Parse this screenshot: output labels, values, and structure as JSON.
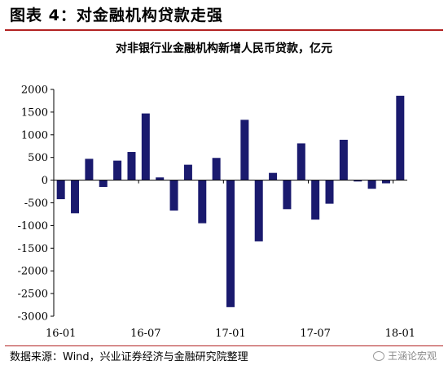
{
  "figure": {
    "label": "图表 4：对金融机构贷款走强",
    "source": "数据来源：Wind，兴业证券经济与金融研究院整理",
    "watermark": "王涵论宏观"
  },
  "colors": {
    "bar": "#1a1a6e",
    "accent_rule": "#b22222"
  },
  "chart_data": {
    "type": "bar",
    "title": "对非银行业金融机构新增人民币贷款，亿元",
    "xlabel": "",
    "ylabel": "",
    "ylim": [
      -3000,
      2000
    ],
    "yticks": [
      2000,
      1500,
      1000,
      500,
      0,
      -500,
      -1000,
      -1500,
      -2000,
      -2500,
      -3000
    ],
    "x_tick_labels": [
      "16-01",
      "16-07",
      "17-01",
      "17-07",
      "18-01"
    ],
    "categories": [
      "16-01",
      "16-02",
      "16-03",
      "16-04",
      "16-05",
      "16-06",
      "16-07",
      "16-08",
      "16-09",
      "16-10",
      "16-11",
      "16-12",
      "17-01",
      "17-02",
      "17-03",
      "17-04",
      "17-05",
      "17-06",
      "17-07",
      "17-08",
      "17-09",
      "17-10",
      "17-11",
      "17-12",
      "18-01"
    ],
    "values": [
      -420,
      -730,
      470,
      -150,
      430,
      620,
      1470,
      60,
      -670,
      340,
      -950,
      490,
      -2800,
      1330,
      -1350,
      160,
      -640,
      810,
      -870,
      -520,
      890,
      -30,
      -190,
      -70,
      1860
    ],
    "grid": false,
    "legend": "none"
  }
}
